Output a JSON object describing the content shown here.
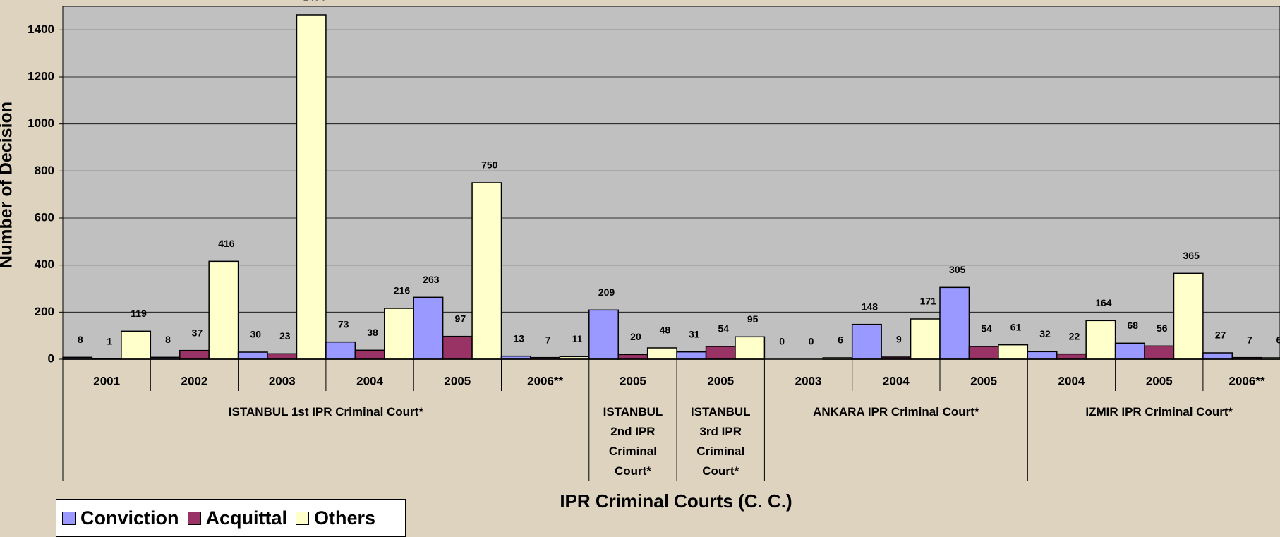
{
  "chart_data": {
    "type": "bar",
    "ylabel": "Number of Decision",
    "xlabel": "IPR Criminal Courts (C. C.)",
    "groups": [
      {
        "name": "ISTANBUL 1st  IPR Criminal Court*",
        "categories": [
          "2001",
          "2002",
          "2003",
          "2004",
          "2005",
          "2006**"
        ]
      },
      {
        "name": "ISTANBUL 2nd  IPR Criminal Court*",
        "categories": [
          "2005"
        ]
      },
      {
        "name": "ISTANBUL 3rd IPR Criminal Court*",
        "categories": [
          "2005"
        ]
      },
      {
        "name": "ANKARA    IPR Criminal Court*",
        "categories": [
          "2003",
          "2004",
          "2005"
        ]
      },
      {
        "name": "IZMIR  IPR Criminal Court*",
        "categories": [
          "2004",
          "2005",
          "2006**"
        ]
      }
    ],
    "series": [
      {
        "name": "Conviction",
        "color": "#9999ff",
        "values": [
          8,
          8,
          30,
          73,
          263,
          13,
          209,
          31,
          0,
          148,
          305,
          32,
          68,
          27
        ]
      },
      {
        "name": "Acquittal",
        "color": "#993366",
        "values": [
          1,
          37,
          23,
          38,
          97,
          7,
          20,
          54,
          0,
          9,
          54,
          22,
          56,
          7
        ]
      },
      {
        "name": "Others",
        "color": "#ffffcc",
        "values": [
          119,
          416,
          1464,
          216,
          750,
          11,
          48,
          95,
          6,
          171,
          61,
          164,
          365,
          6
        ]
      }
    ],
    "ylim": [
      0,
      1500
    ],
    "yticks": [
      0,
      200,
      400,
      600,
      800,
      1000,
      1200,
      1400
    ],
    "grid": true,
    "legend": "bottom-left"
  }
}
